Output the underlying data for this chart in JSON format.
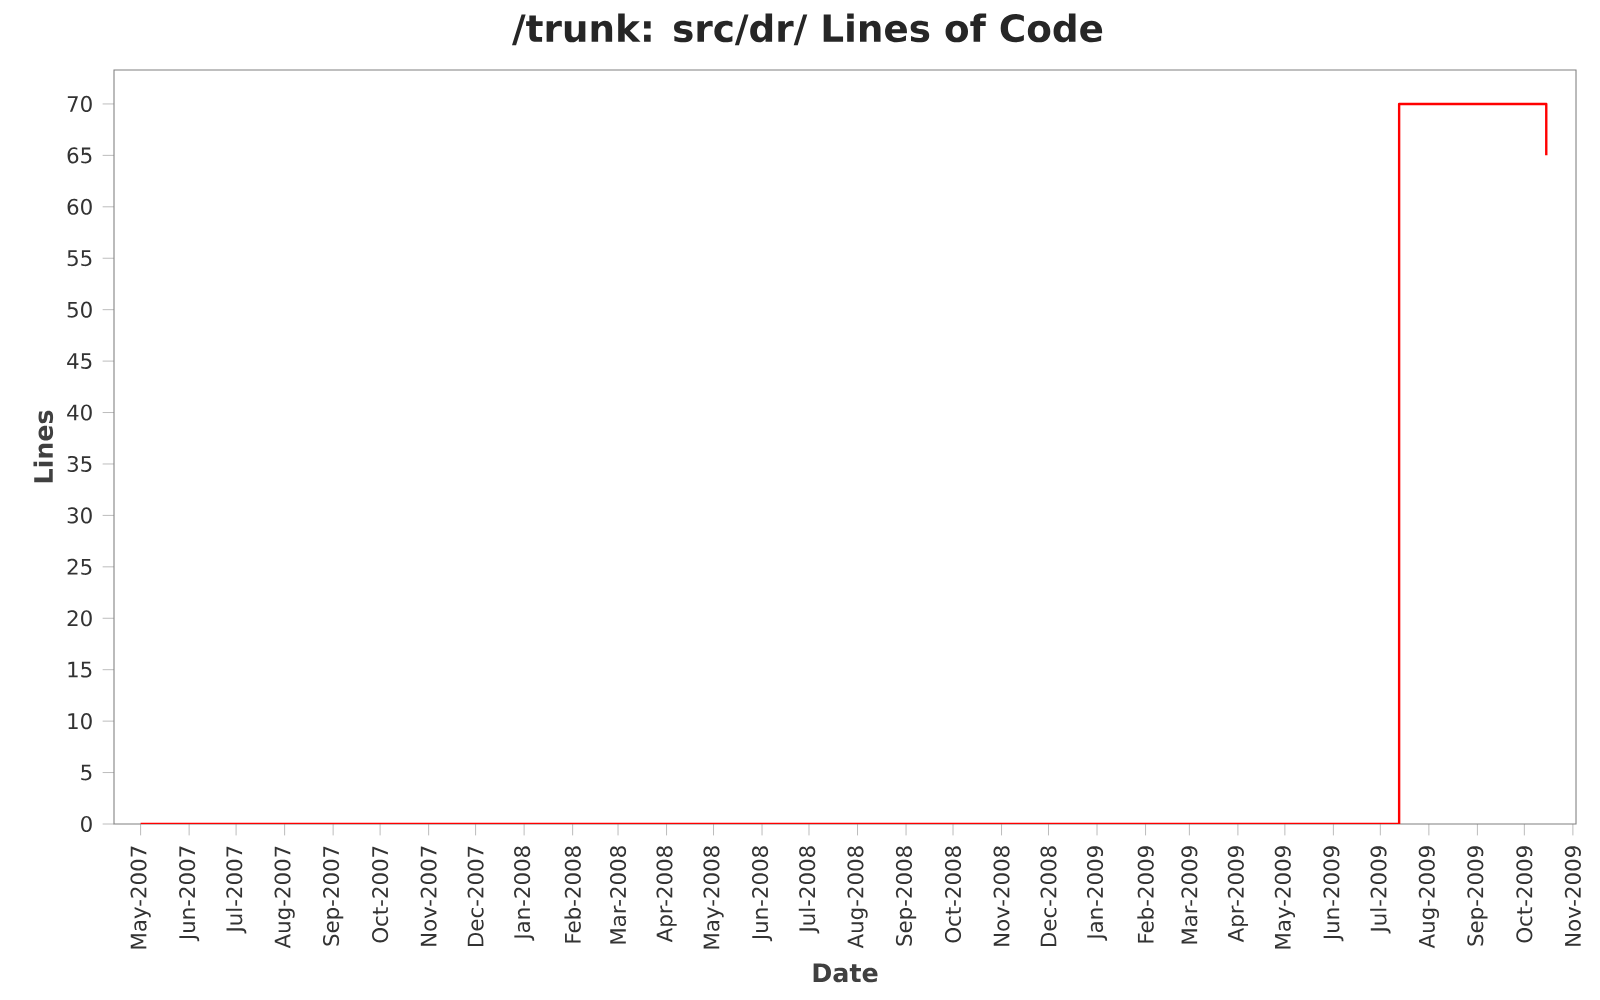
{
  "chart_data": {
    "type": "step",
    "title": "/trunk: src/dr/ Lines of Code",
    "xlabel": "Date",
    "ylabel": "Lines",
    "x": [
      "2007-05-01",
      "2009-07-13",
      "2009-10-15"
    ],
    "series": [
      {
        "color": "#ff0000",
        "values": [
          0,
          70,
          65
        ]
      }
    ],
    "xlim": [
      "2007-04-14",
      "2009-11-03"
    ],
    "xticks": [
      {
        "value": "2007-05",
        "label": "May-2007"
      },
      {
        "value": "2007-06",
        "label": "Jun-2007"
      },
      {
        "value": "2007-07",
        "label": "Jul-2007"
      },
      {
        "value": "2007-08",
        "label": "Aug-2007"
      },
      {
        "value": "2007-09",
        "label": "Sep-2007"
      },
      {
        "value": "2007-10",
        "label": "Oct-2007"
      },
      {
        "value": "2007-11",
        "label": "Nov-2007"
      },
      {
        "value": "2007-12",
        "label": "Dec-2007"
      },
      {
        "value": "2008-01",
        "label": "Jan-2008"
      },
      {
        "value": "2008-02",
        "label": "Feb-2008"
      },
      {
        "value": "2008-03",
        "label": "Mar-2008"
      },
      {
        "value": "2008-04",
        "label": "Apr-2008"
      },
      {
        "value": "2008-05",
        "label": "May-2008"
      },
      {
        "value": "2008-06",
        "label": "Jun-2008"
      },
      {
        "value": "2008-07",
        "label": "Jul-2008"
      },
      {
        "value": "2008-08",
        "label": "Aug-2008"
      },
      {
        "value": "2008-09",
        "label": "Sep-2008"
      },
      {
        "value": "2008-10",
        "label": "Oct-2008"
      },
      {
        "value": "2008-11",
        "label": "Nov-2008"
      },
      {
        "value": "2008-12",
        "label": "Dec-2008"
      },
      {
        "value": "2009-01",
        "label": "Jan-2009"
      },
      {
        "value": "2009-02",
        "label": "Feb-2009"
      },
      {
        "value": "2009-03",
        "label": "Mar-2009"
      },
      {
        "value": "2009-04",
        "label": "Apr-2009"
      },
      {
        "value": "2009-05",
        "label": "May-2009"
      },
      {
        "value": "2009-06",
        "label": "Jun-2009"
      },
      {
        "value": "2009-07",
        "label": "Jul-2009"
      },
      {
        "value": "2009-08",
        "label": "Aug-2009"
      },
      {
        "value": "2009-09",
        "label": "Sep-2009"
      },
      {
        "value": "2009-10",
        "label": "Oct-2009"
      },
      {
        "value": "2009-11",
        "label": "Nov-2009"
      }
    ],
    "ylim": [
      0,
      73.3
    ],
    "yticks": [
      0,
      5,
      10,
      15,
      20,
      25,
      30,
      35,
      40,
      45,
      50,
      55,
      60,
      65,
      70
    ],
    "grid": false,
    "marker": "none",
    "line_style": "solid"
  }
}
